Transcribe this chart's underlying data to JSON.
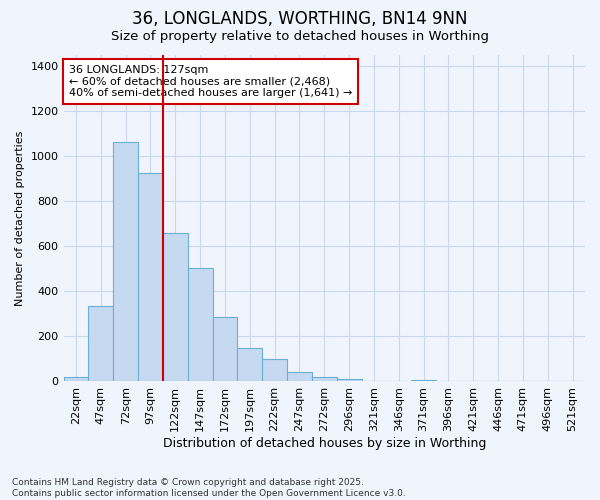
{
  "title": "36, LONGLANDS, WORTHING, BN14 9NN",
  "subtitle": "Size of property relative to detached houses in Worthing",
  "xlabel": "Distribution of detached houses by size in Worthing",
  "ylabel": "Number of detached properties",
  "footer": "Contains HM Land Registry data © Crown copyright and database right 2025.\nContains public sector information licensed under the Open Government Licence v3.0.",
  "categories": [
    "22sqm",
    "47sqm",
    "72sqm",
    "97sqm",
    "122sqm",
    "147sqm",
    "172sqm",
    "197sqm",
    "222sqm",
    "247sqm",
    "272sqm",
    "296sqm",
    "321sqm",
    "346sqm",
    "371sqm",
    "396sqm",
    "421sqm",
    "446sqm",
    "471sqm",
    "496sqm",
    "521sqm"
  ],
  "values": [
    18,
    335,
    1065,
    925,
    660,
    505,
    285,
    150,
    100,
    43,
    22,
    10,
    0,
    0,
    8,
    0,
    0,
    0,
    0,
    0,
    0
  ],
  "bar_color": "#c5d9f0",
  "bar_edge_color": "#6baed6",
  "vline_color": "#cc0000",
  "annotation_text": "36 LONGLANDS: 127sqm\n← 60% of detached houses are smaller (2,468)\n40% of semi-detached houses are larger (1,641) →",
  "ylim": [
    0,
    1450
  ],
  "yticks": [
    0,
    200,
    400,
    600,
    800,
    1000,
    1200,
    1400
  ],
  "background_color": "#f0f4fc",
  "grid_color": "#c8d8f0",
  "title_fontsize": 12,
  "subtitle_fontsize": 9.5,
  "xlabel_fontsize": 9,
  "ylabel_fontsize": 8,
  "tick_fontsize": 8,
  "footer_fontsize": 6.5,
  "annotation_fontsize": 8,
  "vline_x_index": 3.5
}
